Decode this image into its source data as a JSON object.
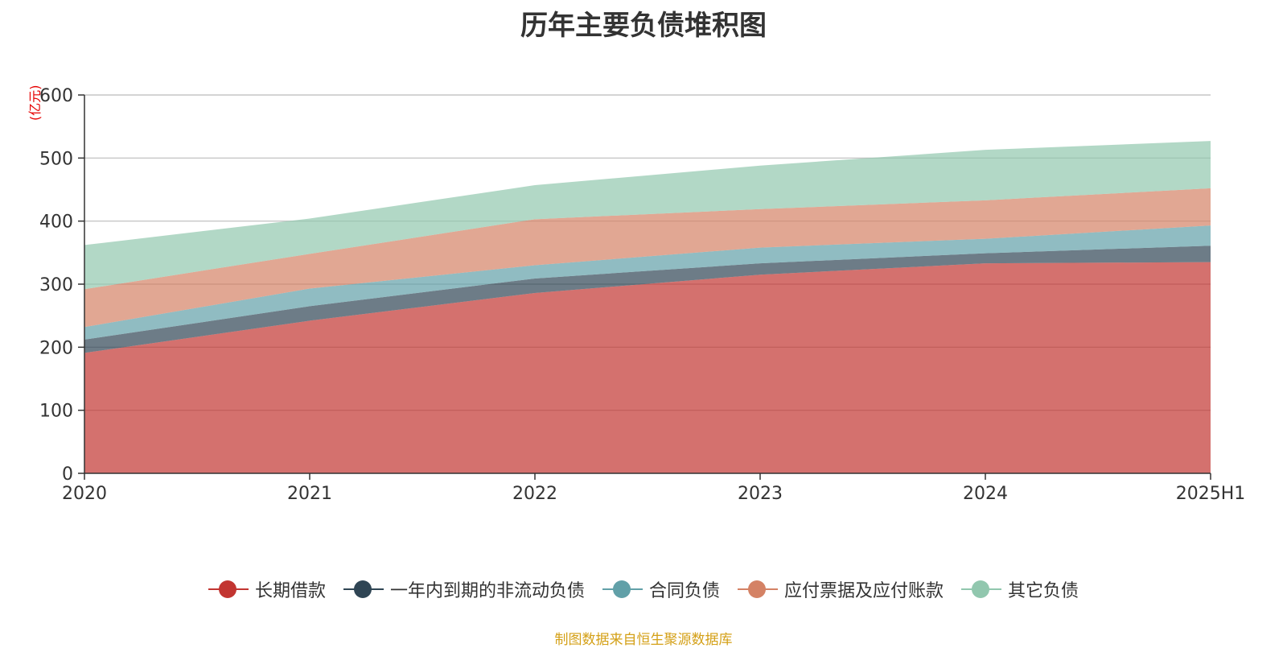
{
  "chart_data": {
    "type": "area",
    "stacked": true,
    "title": "历年主要负债堆积图",
    "unit": "(亿元)",
    "categories": [
      "2020",
      "2021",
      "2022",
      "2023",
      "2024",
      "2025H1"
    ],
    "ylim": [
      0,
      600
    ],
    "yticks": [
      0,
      100,
      200,
      300,
      400,
      500,
      600
    ],
    "grid": true,
    "legend_position": "bottom",
    "series": [
      {
        "name": "长期借款",
        "color": "#c23531",
        "values": [
          191,
          242,
          286,
          315,
          333,
          335
        ]
      },
      {
        "name": "一年内到期的非流动负债",
        "color": "#2f4554",
        "values": [
          21,
          23,
          23,
          18,
          16,
          26
        ]
      },
      {
        "name": "合同负债",
        "color": "#61a0a8",
        "values": [
          20,
          28,
          21,
          25,
          23,
          32
        ]
      },
      {
        "name": "应付票据及应付账款",
        "color": "#d48265",
        "values": [
          60,
          55,
          73,
          61,
          61,
          59
        ]
      },
      {
        "name": "其它负债",
        "color": "#91c7ae",
        "values": [
          70,
          56,
          54,
          69,
          80,
          75
        ]
      }
    ],
    "source": "制图数据来自恒生聚源数据库"
  }
}
